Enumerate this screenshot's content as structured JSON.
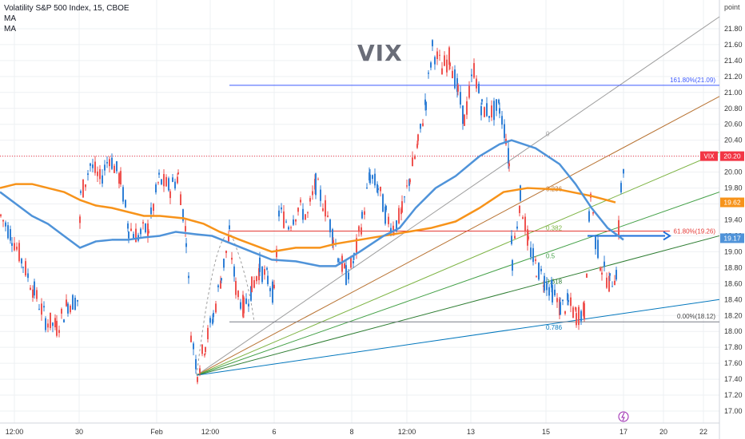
{
  "window": {
    "instrument": "Volatility S&P 500 Index, 15, CBOE",
    "indicators": [
      "MA",
      "MA"
    ],
    "watermark": "VIX",
    "unit_label": "point",
    "icon": "lightning-icon"
  },
  "colors": {
    "up": "#ef5350",
    "down": "#2f7fd6",
    "ma_slow": "#f7931a",
    "ma_fast": "#4f93d9",
    "price_line": "#f23645",
    "fib_blue": "#3d5afe",
    "fib_red": "#e53935",
    "grid": "#eef0f3"
  },
  "chart_data": {
    "type": "candlestick",
    "title": "Volatility S&P 500 Index, 15, CBOE",
    "ylim": [
      16.9,
      22.05
    ],
    "y_ticks": [
      "21.80",
      "21.60",
      "21.40",
      "21.20",
      "21.00",
      "20.80",
      "20.60",
      "20.40",
      "20.20",
      "20.00",
      "19.80",
      "19.60",
      "19.40",
      "19.20",
      "19.00",
      "18.80",
      "18.60",
      "18.40",
      "18.20",
      "18.00",
      "17.80",
      "17.60",
      "17.40",
      "17.20",
      "17.00"
    ],
    "x_ticks": [
      "12:00",
      "30",
      "Feb",
      "12:00",
      "6",
      "8",
      "12:00",
      "13",
      "15",
      "17",
      "20",
      "22"
    ],
    "price_tags": [
      {
        "label": "VIX",
        "value": "20.20"
      },
      {
        "label": "",
        "value": "19.62"
      },
      {
        "label": "",
        "value": "19.17"
      }
    ],
    "fib_retracement": {
      "upper": {
        "label": "161.80%(21.09)",
        "value": 21.09
      },
      "mid": {
        "label": "61.80%(19.26)",
        "value": 19.26
      },
      "lower": {
        "label": "0.00%(18.12)",
        "value": 18.12
      }
    },
    "fan_labels": [
      "0",
      "0.236",
      "0.382",
      "0.5",
      "0.618",
      "0.786"
    ],
    "price_path": [
      [
        0,
        19.45
      ],
      [
        14,
        19.2
      ],
      [
        28,
        18.85
      ],
      [
        42,
        18.5
      ],
      [
        56,
        18.15
      ],
      [
        70,
        18.05
      ],
      [
        84,
        18.35
      ],
      [
        96,
        18.4
      ],
      [
        100,
        19.7
      ],
      [
        112,
        20.1
      ],
      [
        124,
        19.9
      ],
      [
        136,
        20.2
      ],
      [
        150,
        19.9
      ],
      [
        160,
        19.3
      ],
      [
        172,
        19.2
      ],
      [
        185,
        19.3
      ],
      [
        198,
        19.9
      ],
      [
        212,
        19.8
      ],
      [
        222,
        19.95
      ],
      [
        232,
        19.2
      ],
      [
        238,
        18.0
      ],
      [
        246,
        17.5
      ],
      [
        256,
        17.85
      ],
      [
        266,
        18.2
      ],
      [
        276,
        18.7
      ],
      [
        286,
        19.2
      ],
      [
        294,
        18.55
      ],
      [
        304,
        18.3
      ],
      [
        314,
        18.55
      ],
      [
        324,
        18.8
      ],
      [
        334,
        18.65
      ],
      [
        342,
        18.45
      ],
      [
        348,
        19.5
      ],
      [
        360,
        19.35
      ],
      [
        372,
        19.55
      ],
      [
        384,
        19.45
      ],
      [
        394,
        19.85
      ],
      [
        406,
        19.55
      ],
      [
        416,
        19.2
      ],
      [
        424,
        18.9
      ],
      [
        432,
        18.7
      ],
      [
        442,
        18.9
      ],
      [
        452,
        19.4
      ],
      [
        462,
        19.95
      ],
      [
        472,
        19.8
      ],
      [
        482,
        19.45
      ],
      [
        492,
        19.3
      ],
      [
        502,
        19.5
      ],
      [
        512,
        19.95
      ],
      [
        522,
        20.35
      ],
      [
        532,
        20.9
      ],
      [
        540,
        21.55
      ],
      [
        552,
        21.3
      ],
      [
        562,
        21.45
      ],
      [
        572,
        21.0
      ],
      [
        580,
        20.65
      ],
      [
        592,
        21.3
      ],
      [
        602,
        20.8
      ],
      [
        614,
        20.75
      ],
      [
        624,
        20.8
      ],
      [
        632,
        20.45
      ],
      [
        636,
        20.1
      ],
      [
        640,
        18.9
      ],
      [
        650,
        19.7
      ],
      [
        660,
        19.1
      ],
      [
        670,
        18.8
      ],
      [
        680,
        18.65
      ],
      [
        690,
        18.5
      ],
      [
        700,
        18.3
      ],
      [
        710,
        18.35
      ],
      [
        720,
        18.2
      ],
      [
        730,
        18.25
      ],
      [
        738,
        19.75
      ],
      [
        744,
        19.15
      ],
      [
        752,
        18.8
      ],
      [
        762,
        18.6
      ],
      [
        770,
        18.75
      ],
      [
        776,
        19.8
      ],
      [
        781,
        20.2
      ]
    ],
    "ma_slow": [
      [
        0,
        19.8
      ],
      [
        20,
        19.85
      ],
      [
        40,
        19.85
      ],
      [
        60,
        19.8
      ],
      [
        80,
        19.75
      ],
      [
        100,
        19.65
      ],
      [
        120,
        19.58
      ],
      [
        140,
        19.55
      ],
      [
        160,
        19.5
      ],
      [
        180,
        19.45
      ],
      [
        200,
        19.45
      ],
      [
        230,
        19.42
      ],
      [
        255,
        19.35
      ],
      [
        275,
        19.25
      ],
      [
        300,
        19.15
      ],
      [
        340,
        19.0
      ],
      [
        370,
        19.05
      ],
      [
        400,
        19.05
      ],
      [
        420,
        19.1
      ],
      [
        450,
        19.15
      ],
      [
        480,
        19.2
      ],
      [
        510,
        19.25
      ],
      [
        540,
        19.3
      ],
      [
        570,
        19.38
      ],
      [
        600,
        19.55
      ],
      [
        630,
        19.75
      ],
      [
        660,
        19.8
      ],
      [
        700,
        19.78
      ],
      [
        740,
        19.7
      ],
      [
        770,
        19.62
      ]
    ],
    "ma_fast": [
      [
        0,
        19.75
      ],
      [
        20,
        19.6
      ],
      [
        40,
        19.45
      ],
      [
        60,
        19.35
      ],
      [
        80,
        19.2
      ],
      [
        100,
        19.05
      ],
      [
        120,
        19.13
      ],
      [
        140,
        19.15
      ],
      [
        160,
        19.15
      ],
      [
        180,
        19.18
      ],
      [
        200,
        19.2
      ],
      [
        220,
        19.25
      ],
      [
        245,
        19.22
      ],
      [
        265,
        19.2
      ],
      [
        290,
        19.1
      ],
      [
        315,
        19.0
      ],
      [
        340,
        18.9
      ],
      [
        370,
        18.88
      ],
      [
        400,
        18.82
      ],
      [
        420,
        18.82
      ],
      [
        450,
        19.0
      ],
      [
        480,
        19.2
      ],
      [
        500,
        19.3
      ],
      [
        520,
        19.55
      ],
      [
        545,
        19.8
      ],
      [
        570,
        19.95
      ],
      [
        600,
        20.2
      ],
      [
        625,
        20.35
      ],
      [
        640,
        20.4
      ],
      [
        670,
        20.3
      ],
      [
        700,
        20.1
      ],
      [
        720,
        19.85
      ],
      [
        740,
        19.55
      ],
      [
        760,
        19.3
      ],
      [
        780,
        19.15
      ]
    ],
    "candle_shapes": "rendered-from-price_path"
  }
}
